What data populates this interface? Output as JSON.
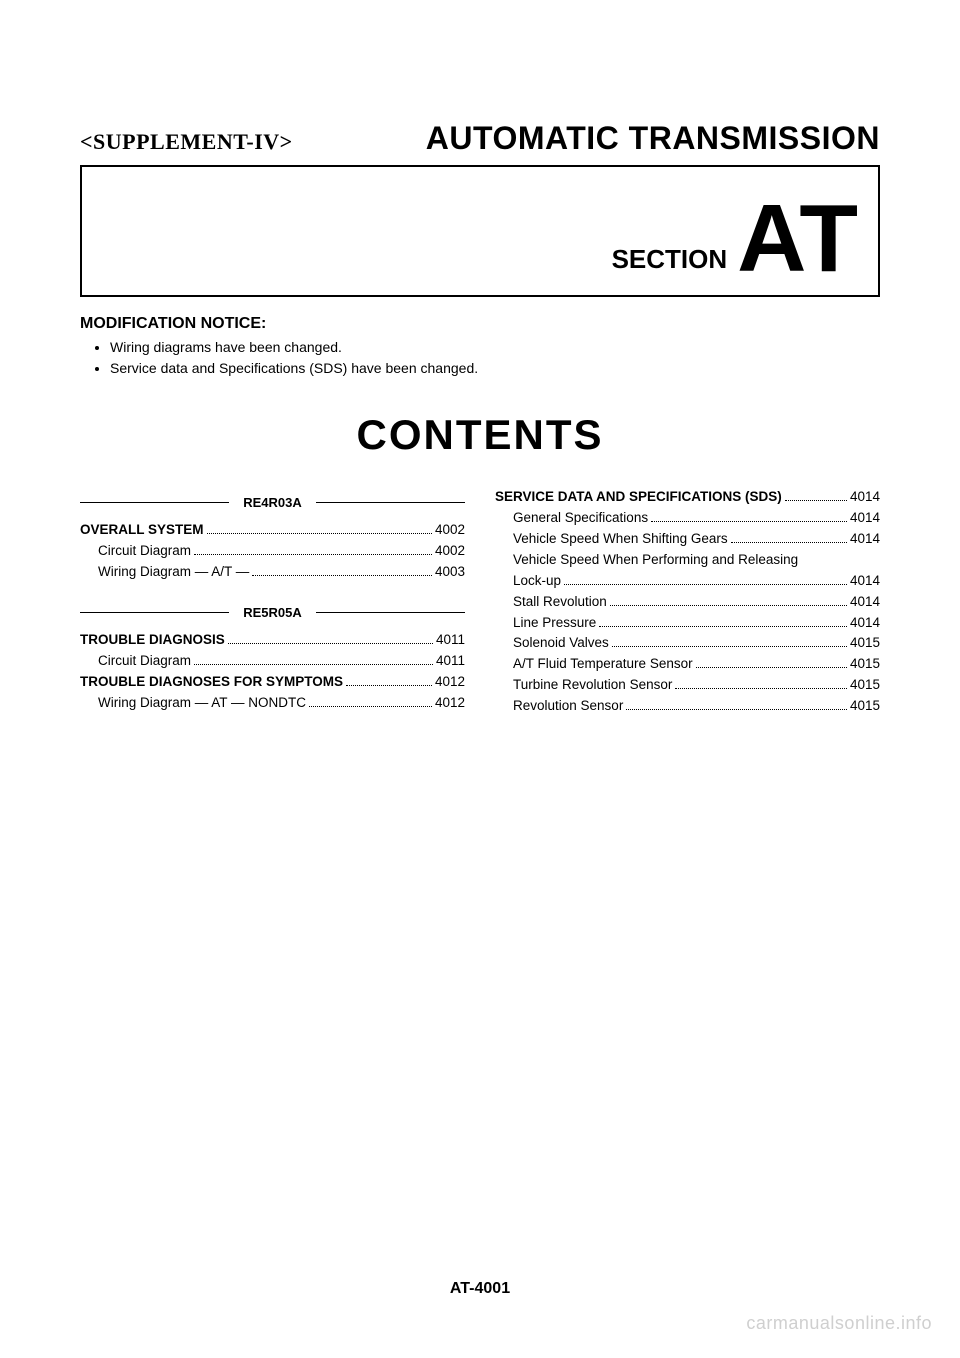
{
  "header": {
    "supplement": "<SUPPLEMENT-IV>",
    "title": "AUTOMATIC TRANSMISSION",
    "section_label": "SECTION",
    "section_code": "AT"
  },
  "notice": {
    "title": "MODIFICATION NOTICE:",
    "items": [
      "Wiring diagrams have been changed.",
      "Service data and Specifications (SDS) have been changed."
    ]
  },
  "contents_title": "CONTENTS",
  "left": {
    "group1": {
      "heading": "RE4R03A",
      "lines": [
        {
          "bold": true,
          "indent": 0,
          "text": "OVERALL SYSTEM",
          "page": "4002"
        },
        {
          "bold": false,
          "indent": 1,
          "text": "Circuit Diagram",
          "page": "4002"
        },
        {
          "bold": false,
          "indent": 1,
          "text": "Wiring Diagram — A/T —",
          "page": "4003"
        }
      ]
    },
    "group2": {
      "heading": "RE5R05A",
      "lines": [
        {
          "bold": true,
          "indent": 0,
          "text": "TROUBLE DIAGNOSIS",
          "page": "4011"
        },
        {
          "bold": false,
          "indent": 1,
          "text": "Circuit Diagram",
          "page": "4011"
        },
        {
          "bold": true,
          "indent": 0,
          "text": "TROUBLE DIAGNOSES FOR SYMPTOMS",
          "page": "4012"
        },
        {
          "bold": false,
          "indent": 1,
          "text": "Wiring Diagram — AT — NONDTC",
          "page": "4012"
        }
      ]
    }
  },
  "right": {
    "lines": [
      {
        "bold": true,
        "indent": 0,
        "text": "SERVICE DATA AND SPECIFICATIONS (SDS)",
        "page": "4014"
      },
      {
        "bold": false,
        "indent": 1,
        "text": "General Specifications",
        "page": "4014"
      },
      {
        "bold": false,
        "indent": 1,
        "text": "Vehicle Speed When Shifting Gears",
        "page": "4014"
      },
      {
        "bold": false,
        "indent": 1,
        "text": "Vehicle Speed When Performing and Releasing",
        "page": ""
      },
      {
        "bold": false,
        "indent": 1,
        "text": "Lock-up",
        "page": "4014"
      },
      {
        "bold": false,
        "indent": 1,
        "text": "Stall Revolution",
        "page": "4014"
      },
      {
        "bold": false,
        "indent": 1,
        "text": "Line Pressure",
        "page": "4014"
      },
      {
        "bold": false,
        "indent": 1,
        "text": "Solenoid Valves",
        "page": "4015"
      },
      {
        "bold": false,
        "indent": 1,
        "text": "A/T Fluid Temperature Sensor",
        "page": "4015"
      },
      {
        "bold": false,
        "indent": 1,
        "text": "Turbine Revolution Sensor",
        "page": "4015"
      },
      {
        "bold": false,
        "indent": 1,
        "text": "Revolution Sensor",
        "page": "4015"
      }
    ]
  },
  "footer": "AT-4001",
  "watermark": "carmanualsonline.info"
}
